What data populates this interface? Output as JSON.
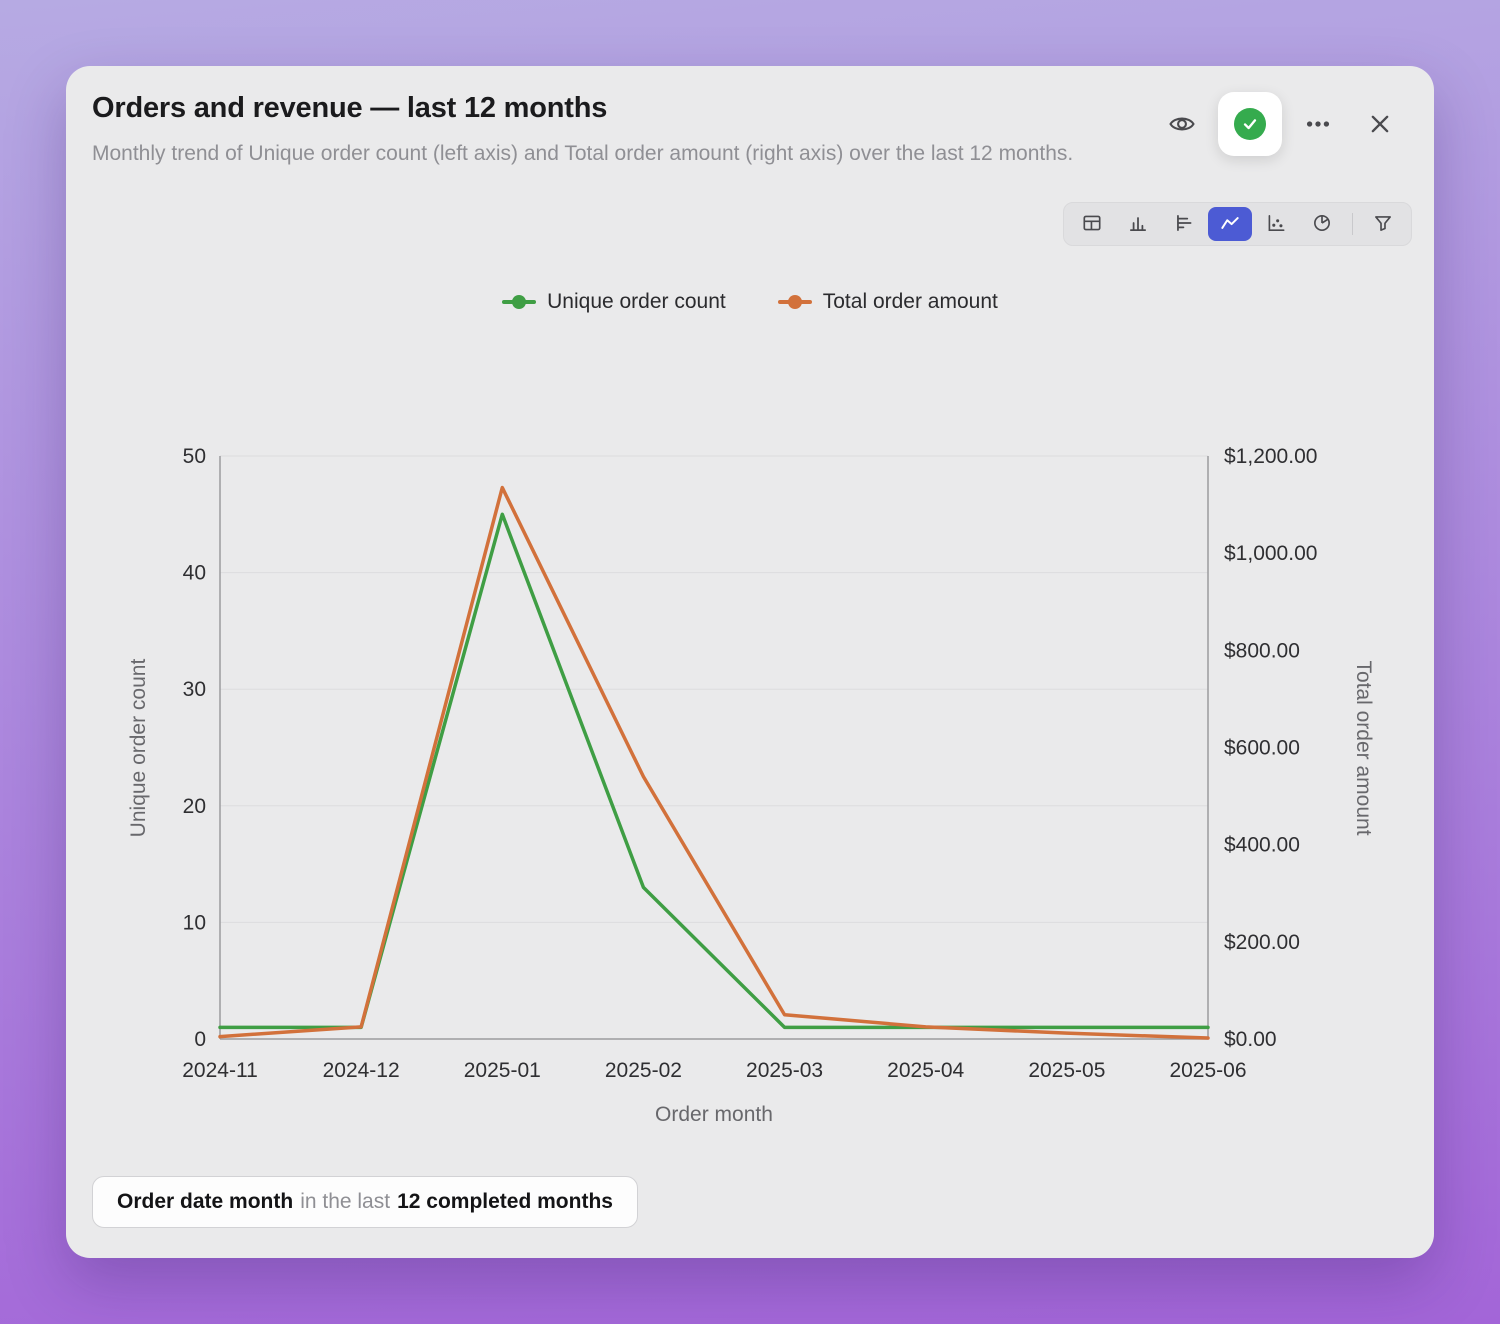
{
  "header": {
    "title": "Orders and revenue — last 12 months",
    "subtitle": "Monthly trend of Unique order count (left axis) and Total order amount (right axis) over the last 12 months."
  },
  "header_actions": {
    "eye_label": "preview",
    "confirm_label": "approved",
    "confirm_color": "#35ab4e",
    "more_label": "more options",
    "close_label": "close"
  },
  "toolbar": {
    "icons": [
      "table",
      "bar-chart",
      "report",
      "area-chart",
      "scatter",
      "pie",
      "filter"
    ],
    "selected": "area-chart",
    "selected_color": "#4c5bd4"
  },
  "legend": [
    {
      "label": "Unique order count",
      "color": "#3f9e44"
    },
    {
      "label": "Total order amount",
      "color": "#d2713b"
    }
  ],
  "chart_data": {
    "type": "line",
    "x": [
      "2024-11",
      "2024-12",
      "2025-01",
      "2025-02",
      "2025-03",
      "2025-04",
      "2025-05",
      "2025-06"
    ],
    "series": [
      {
        "name": "Unique order count",
        "axis": "left",
        "color": "#3f9e44",
        "values": [
          1,
          1,
          45,
          13,
          1,
          1,
          1,
          1
        ]
      },
      {
        "name": "Total order amount",
        "axis": "right",
        "color": "#d2713b",
        "values": [
          5,
          25,
          1135,
          540,
          50,
          25,
          12,
          2
        ]
      }
    ],
    "xlabel": "Order month",
    "left_axis": {
      "label": "Unique order count",
      "min": 0,
      "max": 50,
      "ticks": [
        0,
        10,
        20,
        30,
        40,
        50
      ]
    },
    "right_axis": {
      "label": "Total order amount",
      "min": 0,
      "max": 1200,
      "tick_values": [
        0,
        200,
        400,
        600,
        800,
        1000,
        1200
      ],
      "ticks": [
        "$0.00",
        "$200.00",
        "$400.00",
        "$600.00",
        "$800.00",
        "$1,000.00",
        "$1,200.00"
      ]
    },
    "grid": true,
    "legend_position": "top"
  },
  "filter_chip": {
    "field": "Order date month",
    "connector": "in the last",
    "value": "12 completed months"
  }
}
